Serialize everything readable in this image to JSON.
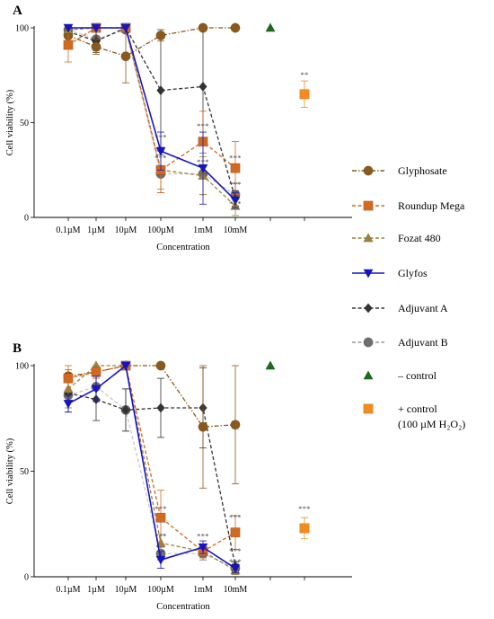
{
  "legend": {
    "items": [
      {
        "key": "glyphosate",
        "label": "Glyphosate",
        "color": "#8B5A1A",
        "marker": "circle",
        "line": "dashdot"
      },
      {
        "key": "roundup",
        "label": "Roundup Mega",
        "color": "#D2691E",
        "marker": "square",
        "line": "dashed"
      },
      {
        "key": "fozat",
        "label": "Fozat 480",
        "color": "#9C8437",
        "marker": "triangle",
        "line": "dashed"
      },
      {
        "key": "glyfos",
        "label": "Glyfos",
        "color": "#1515C8",
        "marker": "triangle-down",
        "line": "solid"
      },
      {
        "key": "adjA",
        "label": "Adjuvant A",
        "color": "#333333",
        "marker": "diamond",
        "line": "dashed"
      },
      {
        "key": "adjB",
        "label": "Adjuvant B",
        "color": "#6E6E6E",
        "marker": "circle",
        "line": "dashed"
      },
      {
        "key": "neg",
        "label": "– control",
        "color": "#1A6B1A",
        "marker": "triangle",
        "line": "none"
      },
      {
        "key": "pos",
        "label": "+ control",
        "label2": "(100 µM H₂O₂)",
        "color": "#F28C1E",
        "marker": "square",
        "line": "none"
      }
    ]
  },
  "chart_data": [
    {
      "panel": "A",
      "type": "line",
      "ylabel": "Cell viability (%)",
      "xlabel": "Concentration",
      "categories": [
        "0.1µM",
        "1µM",
        "10µM",
        "100µM",
        "1mM",
        "10mM"
      ],
      "yticks": [
        0,
        50,
        100
      ],
      "ylim": [
        0,
        100
      ],
      "series": [
        {
          "key": "glyphosate",
          "values": [
            96,
            90,
            85,
            96,
            100,
            100
          ],
          "err": [
            3,
            4,
            14,
            3,
            0,
            0
          ]
        },
        {
          "key": "roundup",
          "values": [
            91,
            100,
            100,
            25,
            40,
            26
          ],
          "err": [
            9,
            0,
            0,
            12,
            16,
            14
          ]
        },
        {
          "key": "fozat",
          "values": [
            99,
            100,
            100,
            25,
            22,
            6
          ],
          "err": [
            1,
            0,
            0,
            10,
            10,
            5
          ]
        },
        {
          "key": "glyfos",
          "values": [
            100,
            100,
            100,
            35,
            26,
            9
          ],
          "err": [
            0,
            0,
            0,
            10,
            19,
            4
          ]
        },
        {
          "key": "adjA",
          "values": [
            98,
            93,
            100,
            67,
            69,
            10
          ],
          "err": [
            2,
            6,
            0,
            32,
            31,
            4
          ]
        },
        {
          "key": "adjB",
          "values": [
            99,
            94,
            99,
            23,
            23,
            12
          ],
          "err": [
            1,
            6,
            1,
            10,
            11,
            6
          ]
        }
      ],
      "controls": {
        "neg": 100,
        "pos": 65,
        "pos_err": 7
      },
      "significance": [
        {
          "x": "100µM",
          "y": 41,
          "text": "***"
        },
        {
          "x": "100µM",
          "y": 30,
          "text": "***"
        },
        {
          "x": "1mM",
          "y": 47,
          "text": "***"
        },
        {
          "x": "1mM",
          "y": 28,
          "text": "***"
        },
        {
          "x": "10mM",
          "y": 30,
          "text": "***"
        },
        {
          "x": "10mM",
          "y": 16,
          "text": "***"
        },
        {
          "x": "10mM",
          "y": 6,
          "text": "***"
        },
        {
          "x": "pos",
          "y": 74,
          "text": "**"
        }
      ]
    },
    {
      "panel": "B",
      "type": "line",
      "ylabel": "Cell viability (%)",
      "xlabel": "Concentration",
      "categories": [
        "0.1µM",
        "1µM",
        "10µM",
        "100µM",
        "1mM",
        "10mM"
      ],
      "yticks": [
        0,
        50,
        100
      ],
      "ylim": [
        0,
        100
      ],
      "series": [
        {
          "key": "glyphosate",
          "values": [
            95,
            97,
            100,
            100,
            71,
            72
          ],
          "err": [
            3,
            2,
            0,
            0,
            29,
            28
          ]
        },
        {
          "key": "roundup",
          "values": [
            94,
            97,
            100,
            28,
            12,
            21
          ],
          "err": [
            6,
            3,
            0,
            13,
            3,
            8
          ]
        },
        {
          "key": "fozat",
          "values": [
            89,
            100,
            100,
            16,
            12,
            3
          ],
          "err": [
            6,
            0,
            0,
            4,
            3,
            2
          ]
        },
        {
          "key": "glyfos",
          "values": [
            82,
            89,
            100,
            8,
            14,
            4
          ],
          "err": [
            4,
            6,
            0,
            4,
            3,
            2
          ]
        },
        {
          "key": "adjA",
          "values": [
            87,
            84,
            79,
            80,
            80,
            5
          ],
          "err": [
            9,
            10,
            10,
            14,
            19,
            2
          ]
        },
        {
          "key": "adjB",
          "values": [
            86,
            90,
            79,
            11,
            11,
            4
          ],
          "err": [
            6,
            6,
            10,
            3,
            3,
            2
          ]
        }
      ],
      "controls": {
        "neg": 100,
        "pos": 23,
        "pos_err": 5
      },
      "significance": [
        {
          "x": "100µM",
          "y": 31,
          "text": "***"
        },
        {
          "x": "100µM",
          "y": 18,
          "text": "***"
        },
        {
          "x": "1mM",
          "y": 18,
          "text": "***"
        },
        {
          "x": "10mM",
          "y": 27,
          "text": "***"
        },
        {
          "x": "10mM",
          "y": 11,
          "text": "***"
        },
        {
          "x": "10mM",
          "y": 6,
          "text": "***"
        },
        {
          "x": "pos",
          "y": 31,
          "text": "***"
        }
      ]
    }
  ]
}
